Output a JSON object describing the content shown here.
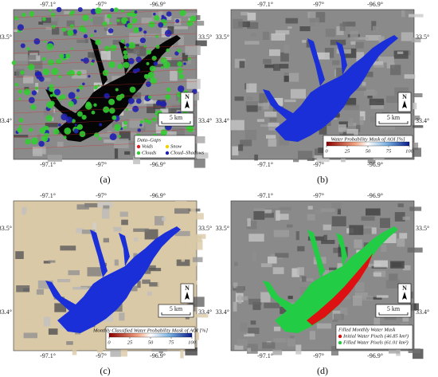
{
  "panels": [
    {
      "caption": "(a)",
      "lon_ticks": [
        "-97.1°",
        "-97°",
        "-96.9°"
      ],
      "lat_ticks": [
        "33.5°",
        "33.4°"
      ],
      "north": "N",
      "scale": "5 km",
      "legend": {
        "title": "Data–Gaps",
        "items": [
          {
            "label": "Voids",
            "color": "#d62728"
          },
          {
            "label": "Snow",
            "color": "#f0d000"
          },
          {
            "label": "Clouds",
            "color": "#33cc33"
          },
          {
            "label": "Cloud–Shadows",
            "color": "#1f1fb0"
          }
        ]
      }
    },
    {
      "caption": "(b)",
      "lon_ticks": [
        "-97.1°",
        "-97°",
        "-96.9°"
      ],
      "lat_ticks": [
        "33.5°",
        "33.4°"
      ],
      "north": "N",
      "scale": "5 km",
      "colorbar": {
        "title": "Water Probability Mask of AOI [%]",
        "range": [
          0,
          100
        ],
        "ticks": [
          0,
          25,
          50,
          75,
          100
        ]
      }
    },
    {
      "caption": "(c)",
      "lon_ticks": [
        "-97.1°",
        "-97°",
        "-96.9°"
      ],
      "lat_ticks": [
        "33.5°",
        "33.4°"
      ],
      "north": "N",
      "scale": "5 km",
      "colorbar": {
        "title": "Monthly Classified Water Probability Mask of AOI [%]",
        "range": [
          0,
          100
        ],
        "ticks": [
          0,
          25,
          50,
          75,
          100
        ]
      }
    },
    {
      "caption": "(d)",
      "lon_ticks": [
        "-97.1°",
        "-97°",
        "-96.9°"
      ],
      "lat_ticks": [
        "33.5°",
        "33.4°"
      ],
      "north": "N",
      "scale": "5 km",
      "legend": {
        "title": "Filled Monthly Water Mask",
        "items": [
          {
            "label": "Initial Water Pixels (46.85 km²)",
            "color": "#dd1111"
          },
          {
            "label": "Filled Water Pixels (61.01 km²)",
            "color": "#22cc44"
          }
        ]
      }
    }
  ]
}
